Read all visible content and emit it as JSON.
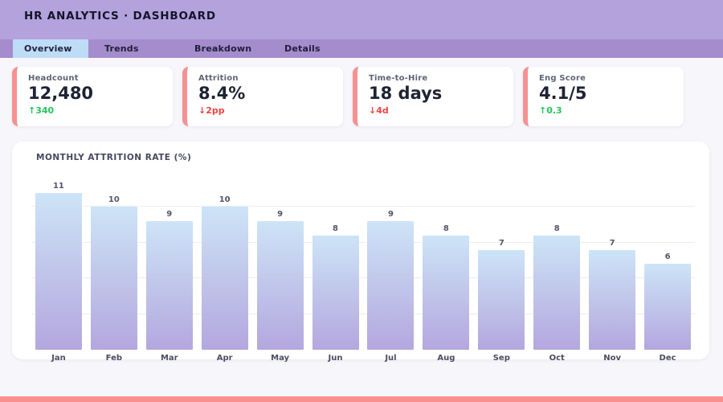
{
  "header": {
    "title": "HR ANALYTICS · DASHBOARD"
  },
  "tabs": [
    {
      "label": "Overview",
      "active": true
    },
    {
      "label": "Trends",
      "active": false
    },
    {
      "label": "Breakdown",
      "active": false
    },
    {
      "label": "Details",
      "active": false
    }
  ],
  "kpis": [
    {
      "label": "Headcount",
      "value": "12,480",
      "delta": "↑340",
      "delta_color": "green"
    },
    {
      "label": "Attrition",
      "value": "8.4%",
      "delta": "↓2pp",
      "delta_color": "red"
    },
    {
      "label": "Time-to-Hire",
      "value": "18 days",
      "delta": "↓4d",
      "delta_color": "red"
    },
    {
      "label": "Eng Score",
      "value": "4.1/5",
      "delta": "↑0.3",
      "delta_color": "green"
    }
  ],
  "chart_data": {
    "type": "bar",
    "title": "MONTHLY ATTRITION RATE (%)",
    "categories": [
      "Jan",
      "Feb",
      "Mar",
      "Apr",
      "May",
      "Jun",
      "Jul",
      "Aug",
      "Sep",
      "Oct",
      "Nov",
      "Dec"
    ],
    "values": [
      11,
      10,
      9,
      10,
      9,
      8,
      9,
      8,
      7,
      8,
      7,
      6
    ],
    "xlabel": "",
    "ylabel": "",
    "ylim": [
      0,
      12.5
    ],
    "gridlines": [
      2.5,
      5,
      7.5,
      10
    ],
    "grid": "on",
    "legend": "none",
    "value_labels": "above-bars"
  },
  "colors": {
    "page_bg": "#f7f7fb",
    "header_bg": "#b3a2dc",
    "tabbar_bg": "#a58ccd",
    "active_tab_bg": "#bedcf8",
    "card_bg": "#ffffff",
    "accent": "#f59192",
    "green": "#22c55e",
    "red": "#ef4444",
    "bar_top": "#cde4f7",
    "bar_bottom": "#b4a7de",
    "gridline": "#ededf2",
    "footer_bar": "#f98f8f"
  }
}
